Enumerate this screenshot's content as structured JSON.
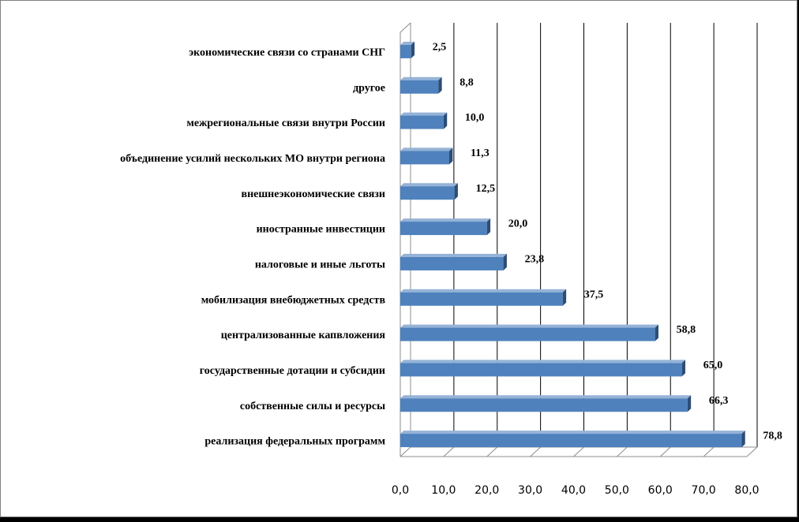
{
  "chart_data": {
    "type": "bar",
    "orientation": "horizontal",
    "style": "3d-clustered",
    "categories": [
      "реализация  федеральных программ",
      "собственные силы и ресурсы",
      "государственные дотации и субсидии",
      "централизованные капвложения",
      "мобилизация внебюджетных средств",
      "налоговые и иные льготы",
      "иностранные инвестиции",
      "внешнеэкономические связи",
      "объединение усилий нескольких МО внутри региона",
      "межрегиональные связи внутри России",
      "другое",
      "экономические связи со странами СНГ"
    ],
    "values": [
      78.8,
      66.3,
      65.0,
      58.8,
      37.5,
      23.8,
      20.0,
      12.5,
      11.3,
      10.0,
      8.8,
      2.5
    ],
    "value_labels": [
      "78,8",
      "66,3",
      "65,0",
      "58,8",
      "37,5",
      "23,8",
      "20,0",
      "12,5",
      "11,3",
      "10,0",
      "8,8",
      "2,5"
    ],
    "x_ticks": [
      "0,0",
      "10,0",
      "20,0",
      "30,0",
      "40,0",
      "50,0",
      "60,0",
      "70,0",
      "80,0"
    ],
    "xlim": [
      0,
      80
    ],
    "grid": true,
    "title": "",
    "xlabel": "",
    "ylabel": "",
    "colors": {
      "bar": "#4f81bd",
      "bar_top": "#95b3d7",
      "bar_side": "#2c4d75",
      "grid": "#000000",
      "wall": "#8c8c8c"
    }
  }
}
